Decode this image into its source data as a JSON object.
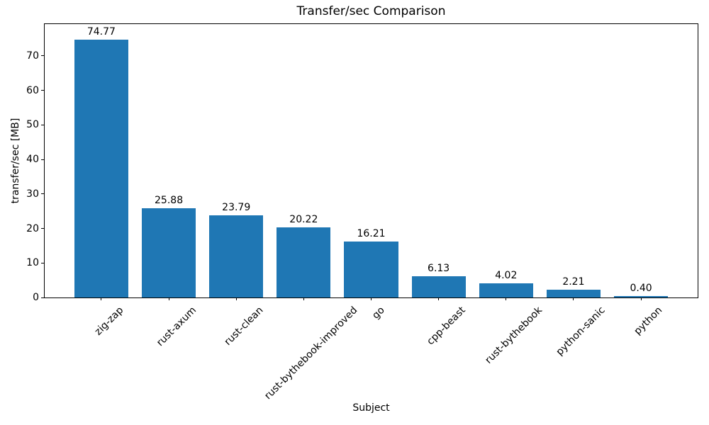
{
  "chart_data": {
    "type": "bar",
    "title": "Transfer/sec Comparison",
    "xlabel": "Subject",
    "ylabel": "transfer/sec [MB]",
    "categories": [
      "zig-zap",
      "rust-axum",
      "rust-clean",
      "rust-bythebook-improved",
      "go",
      "cpp-beast",
      "rust-bythebook",
      "python-sanic",
      "python"
    ],
    "values": [
      74.77,
      25.88,
      23.79,
      20.22,
      16.21,
      6.13,
      4.02,
      2.21,
      0.4
    ],
    "bar_labels": [
      "74.77",
      "25.88",
      "23.79",
      "20.22",
      "16.21",
      "6.13",
      "4.02",
      "2.21",
      "0.40"
    ],
    "bar_color": "#1f77b4",
    "yticks": [
      0,
      10,
      20,
      30,
      40,
      50,
      60,
      70
    ],
    "ylim": [
      0,
      79.2
    ],
    "xtick_rotation_deg": 45,
    "grid": false,
    "legend": null,
    "text_color": "#000000",
    "background_color": "#ffffff"
  }
}
